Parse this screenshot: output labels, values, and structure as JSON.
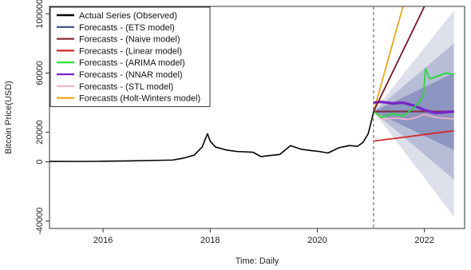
{
  "chart_data": {
    "type": "line",
    "title": "",
    "xlabel": "Time: Daily",
    "ylabel": "Bitcoin Price(USD)",
    "xlim": [
      2015,
      2022.75
    ],
    "ylim": [
      -45000,
      105000
    ],
    "x_ticks": [
      2016,
      2018,
      2020,
      2022
    ],
    "y_ticks": [
      -40000,
      0,
      20000,
      60000,
      100000
    ],
    "grid": false,
    "legend_position": "top-left",
    "forecast_start": 2021.05,
    "series": [
      {
        "name": "Actual Series (Observed)",
        "color": "#000000",
        "x": [
          2015.0,
          2015.5,
          2016.0,
          2016.5,
          2017.0,
          2017.3,
          2017.5,
          2017.7,
          2017.85,
          2017.95,
          2018.0,
          2018.1,
          2018.3,
          2018.5,
          2018.8,
          2018.95,
          2019.0,
          2019.3,
          2019.5,
          2019.7,
          2019.9,
          2020.0,
          2020.2,
          2020.4,
          2020.6,
          2020.75,
          2020.85,
          2020.95,
          2021.02,
          2021.05
        ],
        "y": [
          300,
          250,
          400,
          650,
          1000,
          1200,
          2500,
          4500,
          10000,
          19000,
          14000,
          10000,
          8000,
          7000,
          6500,
          3500,
          3800,
          5000,
          11000,
          8500,
          7500,
          7200,
          6000,
          9500,
          11000,
          10500,
          13000,
          19000,
          29000,
          34000
        ]
      },
      {
        "name": "Forecasts - (ETS model)",
        "color": "#3a4a8c",
        "x": [
          2021.05,
          2022.55
        ],
        "y": [
          34000,
          34000
        ]
      },
      {
        "name": "Forecasts - (Naive model)",
        "color": "#8b2a3a",
        "x": [
          2021.05,
          2022.55
        ],
        "y": [
          34000,
          34000
        ]
      },
      {
        "name": "Forecasts - (Linear model)",
        "color": "#d42a2a",
        "x": [
          2021.05,
          2022.55
        ],
        "y": [
          14000,
          21000
        ]
      },
      {
        "name": "Forecasts - (ARIMA model)",
        "color": "#22dd33",
        "x": [
          2021.05,
          2021.2,
          2021.4,
          2021.6,
          2021.75,
          2021.9,
          2021.98,
          2022.02,
          2022.1,
          2022.25,
          2022.4,
          2022.55
        ],
        "y": [
          34000,
          30000,
          32500,
          31000,
          35000,
          40000,
          45000,
          63000,
          56000,
          58000,
          60000,
          59000
        ]
      },
      {
        "name": "Forecasts - (NNAR model)",
        "color": "#7a22c8",
        "x": [
          2021.05,
          2021.2,
          2021.4,
          2021.6,
          2021.8,
          2022.0,
          2022.2,
          2022.4,
          2022.55
        ],
        "y": [
          40000,
          40500,
          39500,
          40000,
          38000,
          35000,
          33000,
          33500,
          34000
        ]
      },
      {
        "name": "Forecasts - (STL model)",
        "color": "#f0b0c8",
        "x": [
          2021.05,
          2021.2,
          2021.5,
          2021.7,
          2021.85,
          2022.0,
          2022.2,
          2022.55
        ],
        "y": [
          34000,
          29000,
          29500,
          28500,
          30000,
          32000,
          30000,
          29000
        ]
      },
      {
        "name": "Forecasts (Holt-Winters model)",
        "color": "#e8a820",
        "x": [
          2021.05,
          2021.6
        ],
        "y": [
          34000,
          105000
        ]
      }
    ],
    "fan_chart": {
      "x": [
        2021.05,
        2022.55
      ],
      "center": [
        34000,
        34000
      ],
      "bands": [
        {
          "level": "outer",
          "lower": [
            34000,
            -37000
          ],
          "upper": [
            34000,
            102000
          ],
          "color": "#dde0ea"
        },
        {
          "level": "mid",
          "lower": [
            34000,
            -12000
          ],
          "upper": [
            34000,
            80000
          ],
          "color": "#b7bdd6"
        },
        {
          "level": "inner",
          "lower": [
            34000,
            8000
          ],
          "upper": [
            34000,
            60000
          ],
          "color": "#8d95c0"
        }
      ]
    },
    "extra_line": {
      "color": "#7a1424",
      "x": [
        2021.05,
        2022.0
      ],
      "y": [
        34000,
        105000
      ]
    }
  }
}
